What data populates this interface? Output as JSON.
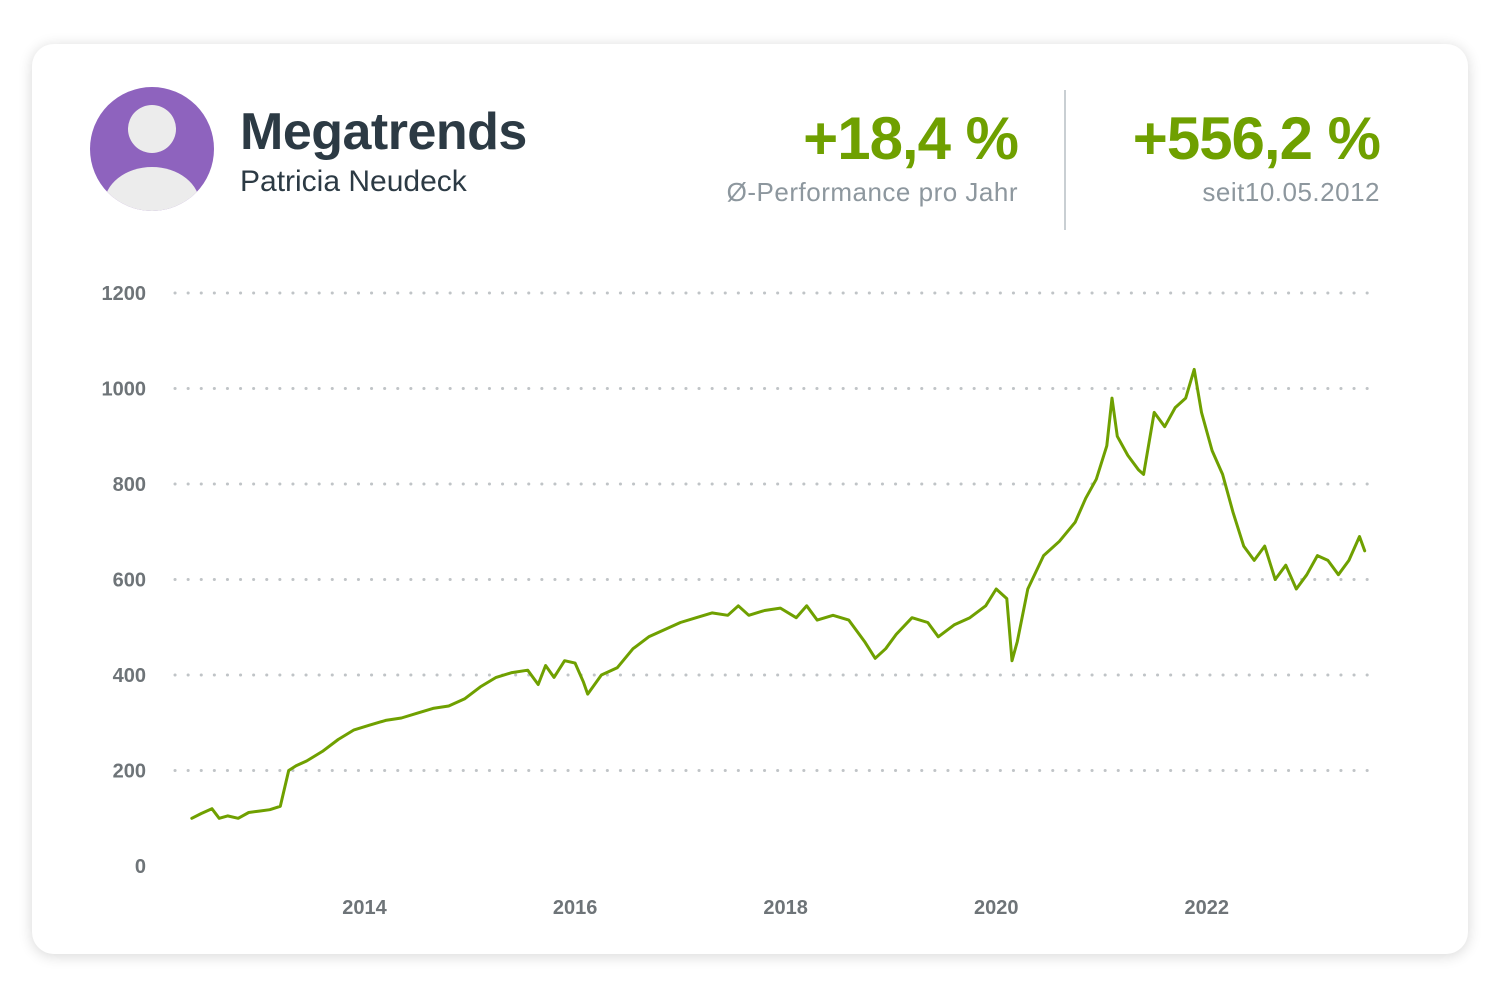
{
  "header": {
    "title": "Megatrends",
    "subtitle": "Patricia Neudeck"
  },
  "kpis": [
    {
      "value": "+18,4 %",
      "label": "Ø-Performance pro Jahr"
    },
    {
      "value": "+556,2 %",
      "label": "seit10.05.2012"
    }
  ],
  "colors": {
    "accent": "#6fa000",
    "avatar_bg": "#8e63be",
    "avatar_figure": "#ececec",
    "text_dark": "#2c3a44",
    "text_muted": "#8d979e",
    "grid": "#c0c4c7",
    "tick": "#6e7478"
  },
  "icons": {
    "avatar": "user-avatar-icon"
  },
  "chart_data": {
    "type": "line",
    "title": "",
    "xlabel": "",
    "ylabel": "",
    "xlim": [
      2012.2,
      2023.55
    ],
    "ylim": [
      0,
      1200
    ],
    "yticks": [
      0,
      200,
      400,
      600,
      800,
      1000,
      1200
    ],
    "xticks": [
      {
        "value": 2014,
        "label": "2014"
      },
      {
        "value": 2016,
        "label": "2016"
      },
      {
        "value": 2018,
        "label": "2018"
      },
      {
        "value": 2020,
        "label": "2020"
      },
      {
        "value": 2022,
        "label": "2022"
      }
    ],
    "grid": "horizontal-dotted",
    "legend": "none",
    "series": [
      {
        "color": "#6fa000",
        "x": [
          2012.36,
          2012.45,
          2012.55,
          2012.62,
          2012.7,
          2012.8,
          2012.9,
          2013.0,
          2013.1,
          2013.2,
          2013.28,
          2013.35,
          2013.45,
          2013.6,
          2013.75,
          2013.9,
          2014.05,
          2014.2,
          2014.35,
          2014.5,
          2014.65,
          2014.8,
          2014.95,
          2015.1,
          2015.25,
          2015.4,
          2015.55,
          2015.65,
          2015.72,
          2015.8,
          2015.9,
          2016.0,
          2016.08,
          2016.12,
          2016.25,
          2016.4,
          2016.55,
          2016.7,
          2016.85,
          2017.0,
          2017.15,
          2017.3,
          2017.45,
          2017.55,
          2017.65,
          2017.8,
          2017.95,
          2018.1,
          2018.2,
          2018.3,
          2018.45,
          2018.6,
          2018.75,
          2018.85,
          2018.95,
          2019.05,
          2019.2,
          2019.35,
          2019.45,
          2019.6,
          2019.75,
          2019.9,
          2020.0,
          2020.1,
          2020.15,
          2020.2,
          2020.3,
          2020.45,
          2020.6,
          2020.75,
          2020.85,
          2020.95,
          2021.05,
          2021.1,
          2021.15,
          2021.25,
          2021.35,
          2021.4,
          2021.5,
          2021.6,
          2021.7,
          2021.8,
          2021.88,
          2021.95,
          2022.05,
          2022.15,
          2022.25,
          2022.35,
          2022.45,
          2022.55,
          2022.65,
          2022.75,
          2022.85,
          2022.95,
          2023.05,
          2023.15,
          2023.25,
          2023.35,
          2023.45,
          2023.5
        ],
        "values": [
          100,
          110,
          120,
          100,
          105,
          100,
          112,
          115,
          118,
          125,
          200,
          210,
          220,
          240,
          265,
          285,
          295,
          305,
          310,
          320,
          330,
          335,
          350,
          375,
          395,
          405,
          410,
          380,
          420,
          395,
          430,
          425,
          385,
          360,
          400,
          415,
          455,
          480,
          495,
          510,
          520,
          530,
          525,
          545,
          525,
          535,
          540,
          520,
          545,
          515,
          525,
          515,
          470,
          435,
          455,
          485,
          520,
          510,
          480,
          505,
          520,
          545,
          580,
          560,
          430,
          470,
          580,
          650,
          680,
          720,
          770,
          810,
          880,
          980,
          900,
          860,
          830,
          820,
          950,
          920,
          960,
          980,
          1040,
          950,
          870,
          820,
          740,
          670,
          640,
          670,
          600,
          630,
          580,
          610,
          650,
          640,
          610,
          640,
          690,
          660
        ]
      }
    ]
  }
}
